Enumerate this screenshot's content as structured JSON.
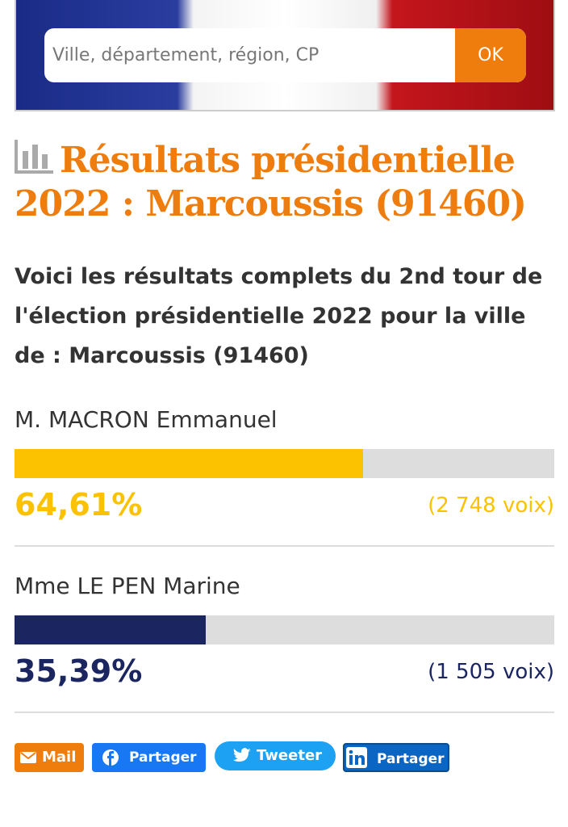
{
  "search": {
    "placeholder": "Ville, département, région, CP",
    "button": "OK"
  },
  "title": "Résultats présidentielle 2022 : Marcoussis (91460)",
  "intro": "Voici les résultats complets du 2nd tour de l'élection présidentielle 2022 pour la ville de : Marcoussis (91460)",
  "results": [
    {
      "name": "M. MACRON Emmanuel",
      "percent": {
        "value": 64.61,
        "label": "64,61%"
      },
      "votes": "(2 748 voix)",
      "color": "#fcc200",
      "pct_color": "#fcc200"
    },
    {
      "name": "Mme LE PEN Marine",
      "percent": {
        "value": 35.39,
        "label": "35,39%"
      },
      "votes": "(1 505 voix)",
      "color": "#1b2660",
      "pct_color": "#1b2660"
    }
  ],
  "share": [
    "Mail",
    "Partager",
    "Tweeter",
    "Partager"
  ]
}
